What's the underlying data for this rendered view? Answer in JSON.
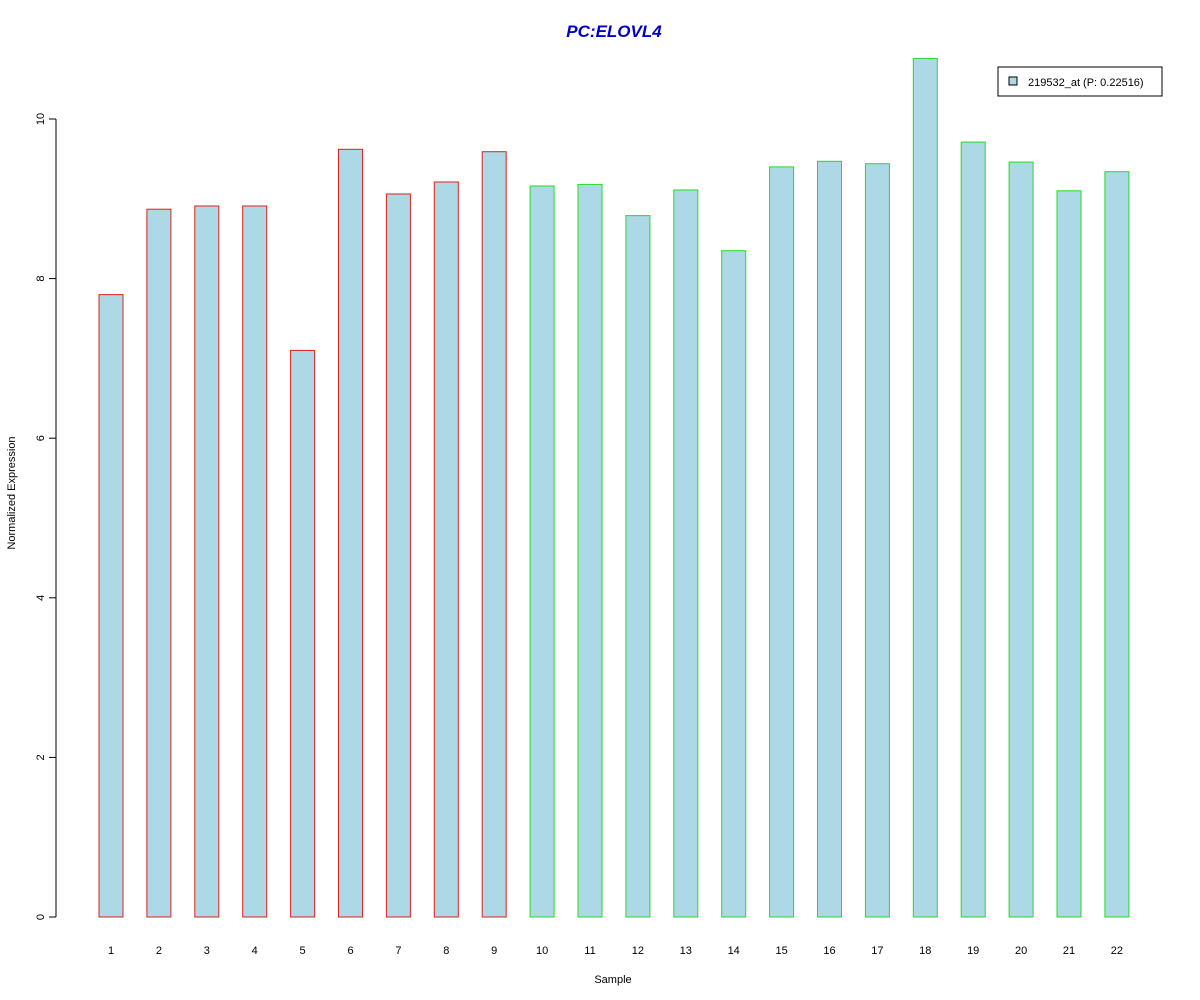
{
  "chart_data": {
    "type": "bar",
    "title": "PC:ELOVL4",
    "xlabel": "Sample",
    "ylabel": "Normalized Expression",
    "categories": [
      "1",
      "2",
      "3",
      "4",
      "5",
      "6",
      "7",
      "8",
      "9",
      "10",
      "11",
      "12",
      "13",
      "14",
      "15",
      "16",
      "17",
      "18",
      "19",
      "20",
      "21",
      "22"
    ],
    "values": [
      7.8,
      8.87,
      8.91,
      8.91,
      7.1,
      9.62,
      9.06,
      9.21,
      9.59,
      9.16,
      9.18,
      8.79,
      9.11,
      8.35,
      9.4,
      9.47,
      9.44,
      10.76,
      9.71,
      9.46,
      9.1,
      9.34
    ],
    "border_colors": [
      "#e0201b",
      "#e0201b",
      "#e0201b",
      "#e0201b",
      "#e0201b",
      "#e0201b",
      "#e0201b",
      "#e0201b",
      "#e0201b",
      "#22dd22",
      "#22dd22",
      "#22dd22",
      "#22dd22",
      "#22dd22",
      "#22dd22",
      "#22dd22",
      "#22dd22",
      "#22dd22",
      "#22dd22",
      "#22dd22",
      "#22dd22",
      "#22dd22"
    ],
    "fill_color": "#add8e6",
    "title_color": "#0000cc",
    "yticks": [
      0,
      2,
      4,
      6,
      8,
      10
    ],
    "ylim": [
      0,
      10.76
    ],
    "grid": false,
    "legend": {
      "position": "top-right",
      "entries": [
        {
          "label": "219532_at (P: 0.22516)",
          "color": "#add8e6"
        }
      ]
    }
  }
}
